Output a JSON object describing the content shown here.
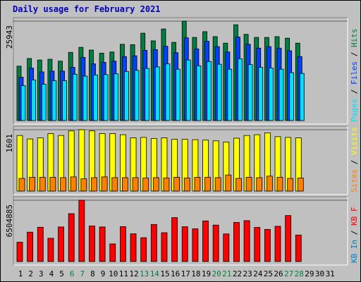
{
  "title": "Daily usage for February 2021",
  "colors": {
    "hits": "#008040",
    "files": "#0040ff",
    "pages": "#00e0ff",
    "visits": "#ffff00",
    "sites": "#ff8000",
    "kbin": "#0080c0",
    "kbf": "#ff0000",
    "weekend_day": "#008040"
  },
  "chart_data": [
    {
      "type": "bar",
      "title": "Daily usage for February 2021",
      "y_max_label": "25943",
      "categories": [
        "1",
        "2",
        "3",
        "4",
        "5",
        "6",
        "7",
        "8",
        "9",
        "10",
        "11",
        "12",
        "13",
        "14",
        "15",
        "16",
        "17",
        "18",
        "19",
        "20",
        "21",
        "22",
        "23",
        "24",
        "25",
        "26",
        "27",
        "28",
        "29",
        "30",
        "31"
      ],
      "weekend_days": [
        "6",
        "7",
        "13",
        "14",
        "20",
        "21",
        "27",
        "28"
      ],
      "legend": [
        {
          "name": "Hits",
          "color": "#008040"
        },
        {
          "name": "Files",
          "color": "#0040ff"
        },
        {
          "name": "Pages",
          "color": "#00e0ff"
        }
      ],
      "ylim": [
        0,
        25943
      ],
      "series": [
        {
          "name": "Hits",
          "values": [
            14200,
            16200,
            15800,
            16000,
            15500,
            17800,
            19100,
            18400,
            17600,
            17900,
            19900,
            19800,
            22800,
            20800,
            23900,
            20400,
            25943,
            21700,
            23200,
            21900,
            20200,
            25000,
            22500,
            21700,
            21700,
            21900,
            21500,
            20200,
            null,
            null,
            null
          ]
        },
        {
          "name": "Files",
          "values": [
            11300,
            13700,
            12700,
            12900,
            12900,
            13900,
            16500,
            14800,
            15200,
            15500,
            16700,
            16900,
            18300,
            18500,
            19400,
            17700,
            21600,
            18700,
            20700,
            19300,
            17900,
            21800,
            19900,
            18900,
            19300,
            18900,
            18200,
            16700,
            null,
            null,
            null
          ]
        },
        {
          "name": "Pages",
          "values": [
            9100,
            10600,
            9500,
            10400,
            10400,
            12100,
            11600,
            11900,
            12000,
            12200,
            12800,
            13100,
            13600,
            14000,
            14800,
            13400,
            15800,
            14300,
            15400,
            14700,
            13400,
            16100,
            14600,
            13900,
            13700,
            13400,
            12500,
            12300,
            null,
            null,
            null
          ]
        }
      ]
    },
    {
      "type": "bar",
      "y_max_label": "1601",
      "legend": [
        {
          "name": "Visits",
          "color": "#ffff00"
        },
        {
          "name": "Sites",
          "color": "#ff8000"
        }
      ],
      "ylim": [
        0,
        1601
      ],
      "series": [
        {
          "name": "Visits",
          "values": [
            1450,
            1360,
            1390,
            1500,
            1450,
            1570,
            1601,
            1570,
            1500,
            1500,
            1470,
            1390,
            1400,
            1370,
            1390,
            1350,
            1350,
            1340,
            1330,
            1310,
            1280,
            1380,
            1450,
            1470,
            1520,
            1420,
            1400,
            1390,
            null,
            null,
            null
          ]
        },
        {
          "name": "Sites",
          "values": [
            330,
            360,
            360,
            360,
            350,
            370,
            320,
            350,
            370,
            350,
            350,
            350,
            340,
            350,
            340,
            360,
            340,
            360,
            360,
            350,
            420,
            330,
            360,
            350,
            390,
            360,
            330,
            340,
            null,
            null,
            null
          ]
        }
      ]
    },
    {
      "type": "bar",
      "y_max_label": "6504885",
      "legend": [
        {
          "name": "KB F",
          "color": "#ff0000"
        },
        {
          "name": "KB In",
          "color": "#0080c0"
        }
      ],
      "ylim": [
        0,
        6504885
      ],
      "series": [
        {
          "name": "KB F",
          "values": [
            2050000,
            3120000,
            3640000,
            2470000,
            3670000,
            5080000,
            6504885,
            3770000,
            3670000,
            1870000,
            3700000,
            2940000,
            2530000,
            3930000,
            3060000,
            4660000,
            3690000,
            3470000,
            4310000,
            3870000,
            2930000,
            4150000,
            4340000,
            3620000,
            3410000,
            3740000,
            4880000,
            2810000,
            null,
            null,
            null
          ]
        },
        {
          "name": "KB In",
          "values": [
            0,
            0,
            0,
            0,
            0,
            0,
            0,
            0,
            0,
            0,
            0,
            0,
            0,
            0,
            0,
            0,
            0,
            0,
            0,
            0,
            0,
            0,
            0,
            0,
            0,
            0,
            0,
            0,
            null,
            null,
            null
          ]
        }
      ]
    }
  ]
}
